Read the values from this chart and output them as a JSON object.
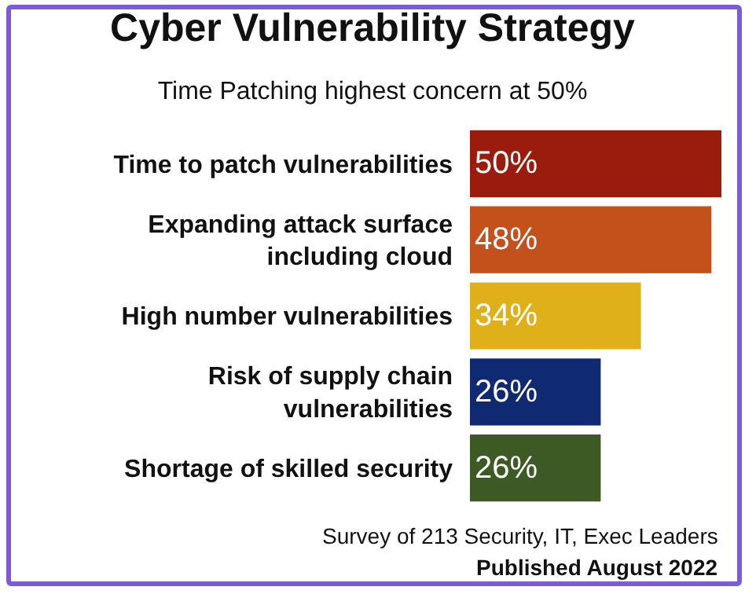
{
  "chart_data": {
    "type": "bar",
    "orientation": "horizontal",
    "title": "Cyber Vulnerability Strategy",
    "subtitle": "Time Patching highest concern at 50%",
    "categories": [
      "Time to patch vulnerabilities",
      "Expanding attack surface including cloud",
      "High number vulnerabilities",
      "Risk of supply chain vulnerabilities",
      "Shortage of skilled security"
    ],
    "values": [
      50,
      48,
      34,
      26,
      26
    ],
    "colors": [
      "#9b1c0c",
      "#c4501b",
      "#e0b01a",
      "#0f2a73",
      "#3d5a25"
    ],
    "value_labels": [
      "50%",
      "48%",
      "34%",
      "26%",
      "26%"
    ],
    "annotations": [
      "Survey of 213 Security, IT, Exec Leaders",
      "Published August 2022"
    ]
  }
}
